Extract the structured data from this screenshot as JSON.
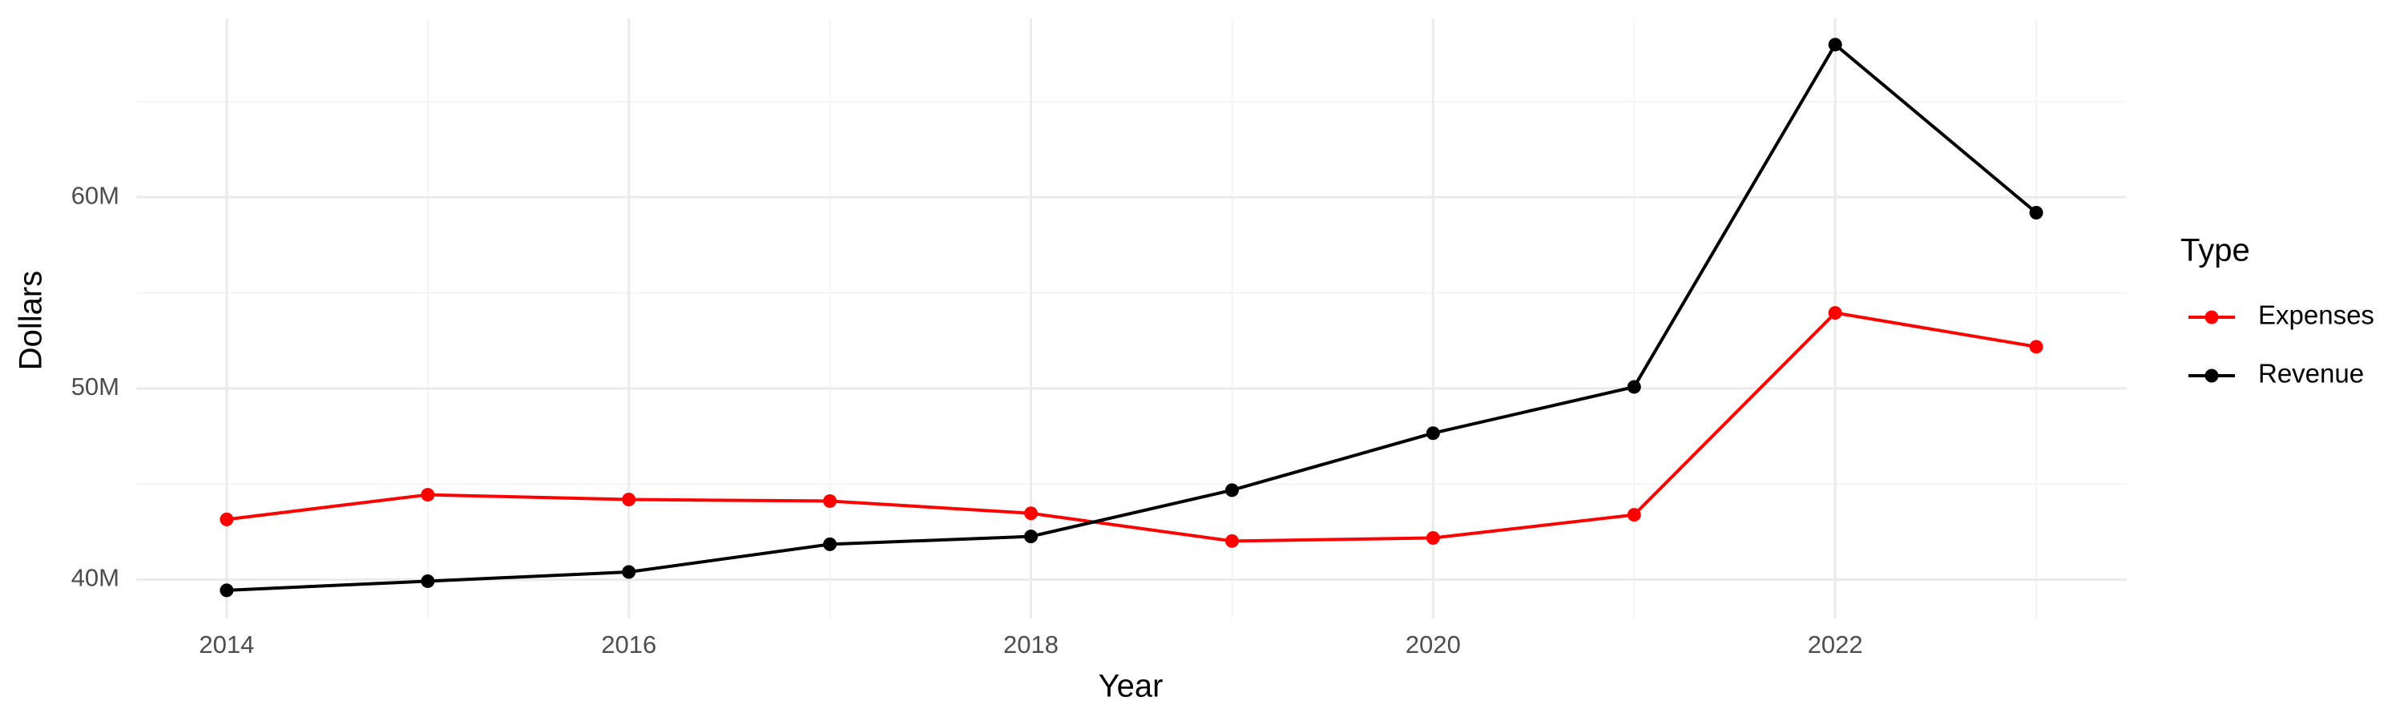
{
  "chart_data": {
    "type": "line",
    "x_label": "Year",
    "y_label": "Dollars",
    "x": [
      2014,
      2015,
      2016,
      2017,
      2018,
      2019,
      2020,
      2021,
      2022,
      2023
    ],
    "series": [
      {
        "name": "Expenses",
        "color": "#ff0000",
        "values": [
          43150000,
          44440000,
          44190000,
          44110000,
          43470000,
          42020000,
          42180000,
          43390000,
          53950000,
          52180000
        ]
      },
      {
        "name": "Revenue",
        "color": "#000000",
        "values": [
          39440000,
          39920000,
          40400000,
          41850000,
          42260000,
          44680000,
          47660000,
          50080000,
          67980000,
          59190000
        ]
      }
    ],
    "xlim": [
      2013.55,
      2023.45
    ],
    "xticks": [
      2014,
      2016,
      2018,
      2020,
      2022
    ],
    "ylim": [
      37970000,
      69350000
    ],
    "yticks": [
      {
        "value": 40000000,
        "label": "40M"
      },
      {
        "value": 50000000,
        "label": "50M"
      },
      {
        "value": 60000000,
        "label": "60M"
      }
    ],
    "grid": true,
    "minor_grid": true,
    "legend_title": "Type",
    "legend_position": "right"
  }
}
